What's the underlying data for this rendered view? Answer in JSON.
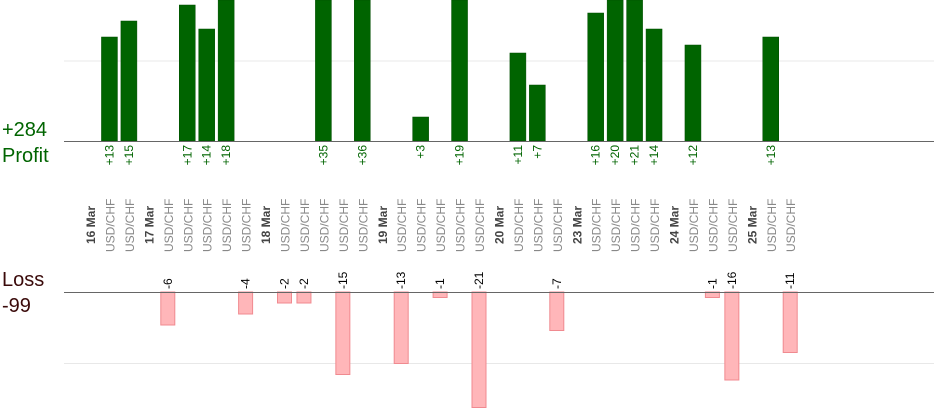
{
  "summary": {
    "profit_total": "+284",
    "profit_label": "Profit",
    "loss_label": "Loss",
    "loss_total": "-99"
  },
  "colors": {
    "profit_bar": "#006400",
    "profit_text": "#006400",
    "loss_bar": "#ffb6b9",
    "loss_bar_border": "#f08a90",
    "loss_text": "#000000",
    "date_text": "#444444",
    "pair_text": "#888888",
    "axis": "#666666",
    "grid": "#e8e8e8"
  },
  "chart_data": {
    "type": "bar",
    "description_axis": "two mirrored bar panels sharing one sequence of trade columns",
    "grid": true,
    "days": [
      {
        "date": "16 Mar",
        "trades": [
          {
            "pair": "USD/CHF",
            "value": 13,
            "label": "+13"
          },
          {
            "pair": "USD/CHF",
            "value": 15,
            "label": "+15"
          }
        ]
      },
      {
        "date": "17 Mar",
        "trades": [
          {
            "pair": "USD/CHF",
            "value": -6,
            "label": "-6"
          },
          {
            "pair": "USD/CHF",
            "value": 17,
            "label": "+17"
          },
          {
            "pair": "USD/CHF",
            "value": 14,
            "label": "+14"
          },
          {
            "pair": "USD/CHF",
            "value": 18,
            "label": "+18"
          },
          {
            "pair": "USD/CHF",
            "value": -4,
            "label": "-4"
          }
        ]
      },
      {
        "date": "18 Mar",
        "trades": [
          {
            "pair": "USD/CHF",
            "value": -2,
            "label": "-2"
          },
          {
            "pair": "USD/CHF",
            "value": -2,
            "label": "-2"
          },
          {
            "pair": "USD/CHF",
            "value": 35,
            "label": "+35"
          },
          {
            "pair": "USD/CHF",
            "value": -15,
            "label": "-15"
          },
          {
            "pair": "USD/CHF",
            "value": 36,
            "label": "+36"
          }
        ]
      },
      {
        "date": "19 Mar",
        "trades": [
          {
            "pair": "USD/CHF",
            "value": -13,
            "label": "-13"
          },
          {
            "pair": "USD/CHF",
            "value": 3,
            "label": "+3"
          },
          {
            "pair": "USD/CHF",
            "value": -1,
            "label": "-1"
          },
          {
            "pair": "USD/CHF",
            "value": 19,
            "label": "+19"
          },
          {
            "pair": "USD/CHF",
            "value": -21,
            "label": "-21"
          }
        ]
      },
      {
        "date": "20 Mar",
        "trades": [
          {
            "pair": "USD/CHF",
            "value": 11,
            "label": "+11"
          },
          {
            "pair": "USD/CHF",
            "value": 7,
            "label": "+7"
          },
          {
            "pair": "USD/CHF",
            "value": -7,
            "label": "-7"
          }
        ]
      },
      {
        "date": "23 Mar",
        "trades": [
          {
            "pair": "USD/CHF",
            "value": 16,
            "label": "+16"
          },
          {
            "pair": "USD/CHF",
            "value": 20,
            "label": "+20"
          },
          {
            "pair": "USD/CHF",
            "value": 21,
            "label": "+21"
          },
          {
            "pair": "USD/CHF",
            "value": 14,
            "label": "+14"
          }
        ]
      },
      {
        "date": "24 Mar",
        "trades": [
          {
            "pair": "USD/CHF",
            "value": 12,
            "label": "+12"
          },
          {
            "pair": "USD/CHF",
            "value": -1,
            "label": "-1"
          },
          {
            "pair": "USD/CHF",
            "value": -16,
            "label": "-16"
          }
        ]
      },
      {
        "date": "25 Mar",
        "trades": [
          {
            "pair": "USD/CHF",
            "value": 13,
            "label": "+13"
          },
          {
            "pair": "USD/CHF",
            "value": -11,
            "label": "-11"
          }
        ]
      }
    ]
  }
}
